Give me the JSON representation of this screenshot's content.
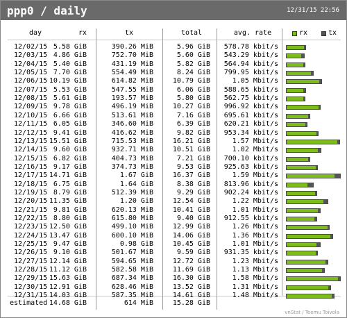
{
  "title": "ppp0 / daily",
  "timestamp": "12/31/15 22:56",
  "columns": [
    "day",
    "rx",
    "tx",
    "total",
    "avg. rate"
  ],
  "legend": {
    "rx": "rx",
    "tx": "tx"
  },
  "colors": {
    "rx": "#7cbd1c",
    "tx": "#555555",
    "header": "#6a6a6a"
  },
  "rows": [
    {
      "day": "12/02/15",
      "rx": "5.58 GiB",
      "tx": "390.26 MiB",
      "total": "5.96 GiB",
      "rate": "578.78 kbit/s",
      "rx_gib": 5.58,
      "tx_gib": 0.381
    },
    {
      "day": "12/03/15",
      "rx": "4.86 GiB",
      "tx": "752.70 MiB",
      "total": "5.60 GiB",
      "rate": "543.29 kbit/s",
      "rx_gib": 4.86,
      "tx_gib": 0.735
    },
    {
      "day": "12/04/15",
      "rx": "5.40 GiB",
      "tx": "431.19 MiB",
      "total": "5.82 GiB",
      "rate": "564.94 kbit/s",
      "rx_gib": 5.4,
      "tx_gib": 0.421
    },
    {
      "day": "12/05/15",
      "rx": "7.70 GiB",
      "tx": "554.49 MiB",
      "total": "8.24 GiB",
      "rate": "799.95 kbit/s",
      "rx_gib": 7.7,
      "tx_gib": 0.541
    },
    {
      "day": "12/06/15",
      "rx": "10.19 GiB",
      "tx": "614.82 MiB",
      "total": "10.79 GiB",
      "rate": "1.05 Mbit/s",
      "rx_gib": 10.19,
      "tx_gib": 0.6
    },
    {
      "day": "12/07/15",
      "rx": "5.53 GiB",
      "tx": "547.55 MiB",
      "total": "6.06 GiB",
      "rate": "588.65 kbit/s",
      "rx_gib": 5.53,
      "tx_gib": 0.535
    },
    {
      "day": "12/08/15",
      "rx": "5.61 GiB",
      "tx": "193.57 MiB",
      "total": "5.80 GiB",
      "rate": "562.75 kbit/s",
      "rx_gib": 5.61,
      "tx_gib": 0.189
    },
    {
      "day": "12/09/15",
      "rx": "9.78 GiB",
      "tx": "496.19 MiB",
      "total": "10.27 GiB",
      "rate": "996.92 kbit/s",
      "rx_gib": 9.78,
      "tx_gib": 0.485
    },
    {
      "day": "12/10/15",
      "rx": "6.66 GiB",
      "tx": "513.61 MiB",
      "total": "7.16 GiB",
      "rate": "695.61 kbit/s",
      "rx_gib": 6.66,
      "tx_gib": 0.502
    },
    {
      "day": "12/11/15",
      "rx": "6.05 GiB",
      "tx": "346.60 MiB",
      "total": "6.39 GiB",
      "rate": "620.21 kbit/s",
      "rx_gib": 6.05,
      "tx_gib": 0.338
    },
    {
      "day": "12/12/15",
      "rx": "9.41 GiB",
      "tx": "416.62 MiB",
      "total": "9.82 GiB",
      "rate": "953.34 kbit/s",
      "rx_gib": 9.41,
      "tx_gib": 0.407
    },
    {
      "day": "12/13/15",
      "rx": "15.51 GiB",
      "tx": "715.53 MiB",
      "total": "16.21 GiB",
      "rate": "1.57 Mbit/s",
      "rx_gib": 15.51,
      "tx_gib": 0.699
    },
    {
      "day": "12/14/15",
      "rx": "9.60 GiB",
      "tx": "932.71 MiB",
      "total": "10.51 GiB",
      "rate": "1.02 Mbit/s",
      "rx_gib": 9.6,
      "tx_gib": 0.911
    },
    {
      "day": "12/15/15",
      "rx": "6.82 GiB",
      "tx": "404.73 MiB",
      "total": "7.21 GiB",
      "rate": "700.10 kbit/s",
      "rx_gib": 6.82,
      "tx_gib": 0.395
    },
    {
      "day": "12/16/15",
      "rx": "9.17 GiB",
      "tx": "374.73 MiB",
      "total": "9.53 GiB",
      "rate": "925.63 kbit/s",
      "rx_gib": 9.17,
      "tx_gib": 0.366
    },
    {
      "day": "12/17/15",
      "rx": "14.71 GiB",
      "tx": "1.67 GiB",
      "total": "16.37 GiB",
      "rate": "1.59 Mbit/s",
      "rx_gib": 14.71,
      "tx_gib": 1.67
    },
    {
      "day": "12/18/15",
      "rx": "6.75 GiB",
      "tx": "1.64 GiB",
      "total": "8.38 GiB",
      "rate": "813.96 kbit/s",
      "rx_gib": 6.75,
      "tx_gib": 1.64
    },
    {
      "day": "12/19/15",
      "rx": "8.79 GiB",
      "tx": "512.39 MiB",
      "total": "9.29 GiB",
      "rate": "902.24 kbit/s",
      "rx_gib": 8.79,
      "tx_gib": 0.5
    },
    {
      "day": "12/20/15",
      "rx": "11.35 GiB",
      "tx": "1.20 GiB",
      "total": "12.54 GiB",
      "rate": "1.22 Mbit/s",
      "rx_gib": 11.35,
      "tx_gib": 1.2
    },
    {
      "day": "12/21/15",
      "rx": "9.81 GiB",
      "tx": "620.13 MiB",
      "total": "10.41 GiB",
      "rate": "1.01 Mbit/s",
      "rx_gib": 9.81,
      "tx_gib": 0.606
    },
    {
      "day": "12/22/15",
      "rx": "8.80 GiB",
      "tx": "615.80 MiB",
      "total": "9.40 GiB",
      "rate": "912.55 kbit/s",
      "rx_gib": 8.8,
      "tx_gib": 0.601
    },
    {
      "day": "12/23/15",
      "rx": "12.50 GiB",
      "tx": "499.10 MiB",
      "total": "12.99 GiB",
      "rate": "1.26 Mbit/s",
      "rx_gib": 12.5,
      "tx_gib": 0.487
    },
    {
      "day": "12/24/15",
      "rx": "13.47 GiB",
      "tx": "600.10 MiB",
      "total": "14.06 GiB",
      "rate": "1.36 Mbit/s",
      "rx_gib": 13.47,
      "tx_gib": 0.586
    },
    {
      "day": "12/25/15",
      "rx": "9.47 GiB",
      "tx": "0.98 GiB",
      "total": "10.45 GiB",
      "rate": "1.01 Mbit/s",
      "rx_gib": 9.47,
      "tx_gib": 0.98
    },
    {
      "day": "12/26/15",
      "rx": "9.10 GiB",
      "tx": "501.67 MiB",
      "total": "9.59 GiB",
      "rate": "931.35 kbit/s",
      "rx_gib": 9.1,
      "tx_gib": 0.49
    },
    {
      "day": "12/27/15",
      "rx": "12.14 GiB",
      "tx": "594.65 MiB",
      "total": "12.72 GiB",
      "rate": "1.23 Mbit/s",
      "rx_gib": 12.14,
      "tx_gib": 0.581
    },
    {
      "day": "12/28/15",
      "rx": "11.12 GiB",
      "tx": "582.58 MiB",
      "total": "11.69 GiB",
      "rate": "1.13 Mbit/s",
      "rx_gib": 11.12,
      "tx_gib": 0.569
    },
    {
      "day": "12/29/15",
      "rx": "15.63 GiB",
      "tx": "687.34 MiB",
      "total": "16.30 GiB",
      "rate": "1.58 Mbit/s",
      "rx_gib": 15.63,
      "tx_gib": 0.671
    },
    {
      "day": "12/30/15",
      "rx": "12.91 GiB",
      "tx": "628.46 MiB",
      "total": "13.52 GiB",
      "rate": "1.31 Mbit/s",
      "rx_gib": 12.91,
      "tx_gib": 0.614
    },
    {
      "day": "12/31/15",
      "rx": "14.03 GiB",
      "tx": "587.35 MiB",
      "total": "14.61 GiB",
      "rate": "1.48 Mbit/s",
      "rx_gib": 14.03,
      "tx_gib": 0.574
    }
  ],
  "estimated": {
    "label": "estimated",
    "rx": "14.68 GiB",
    "tx": "614 MiB",
    "total": "15.28 GiB"
  },
  "footer": "vnStat / Teemu Toivola"
}
